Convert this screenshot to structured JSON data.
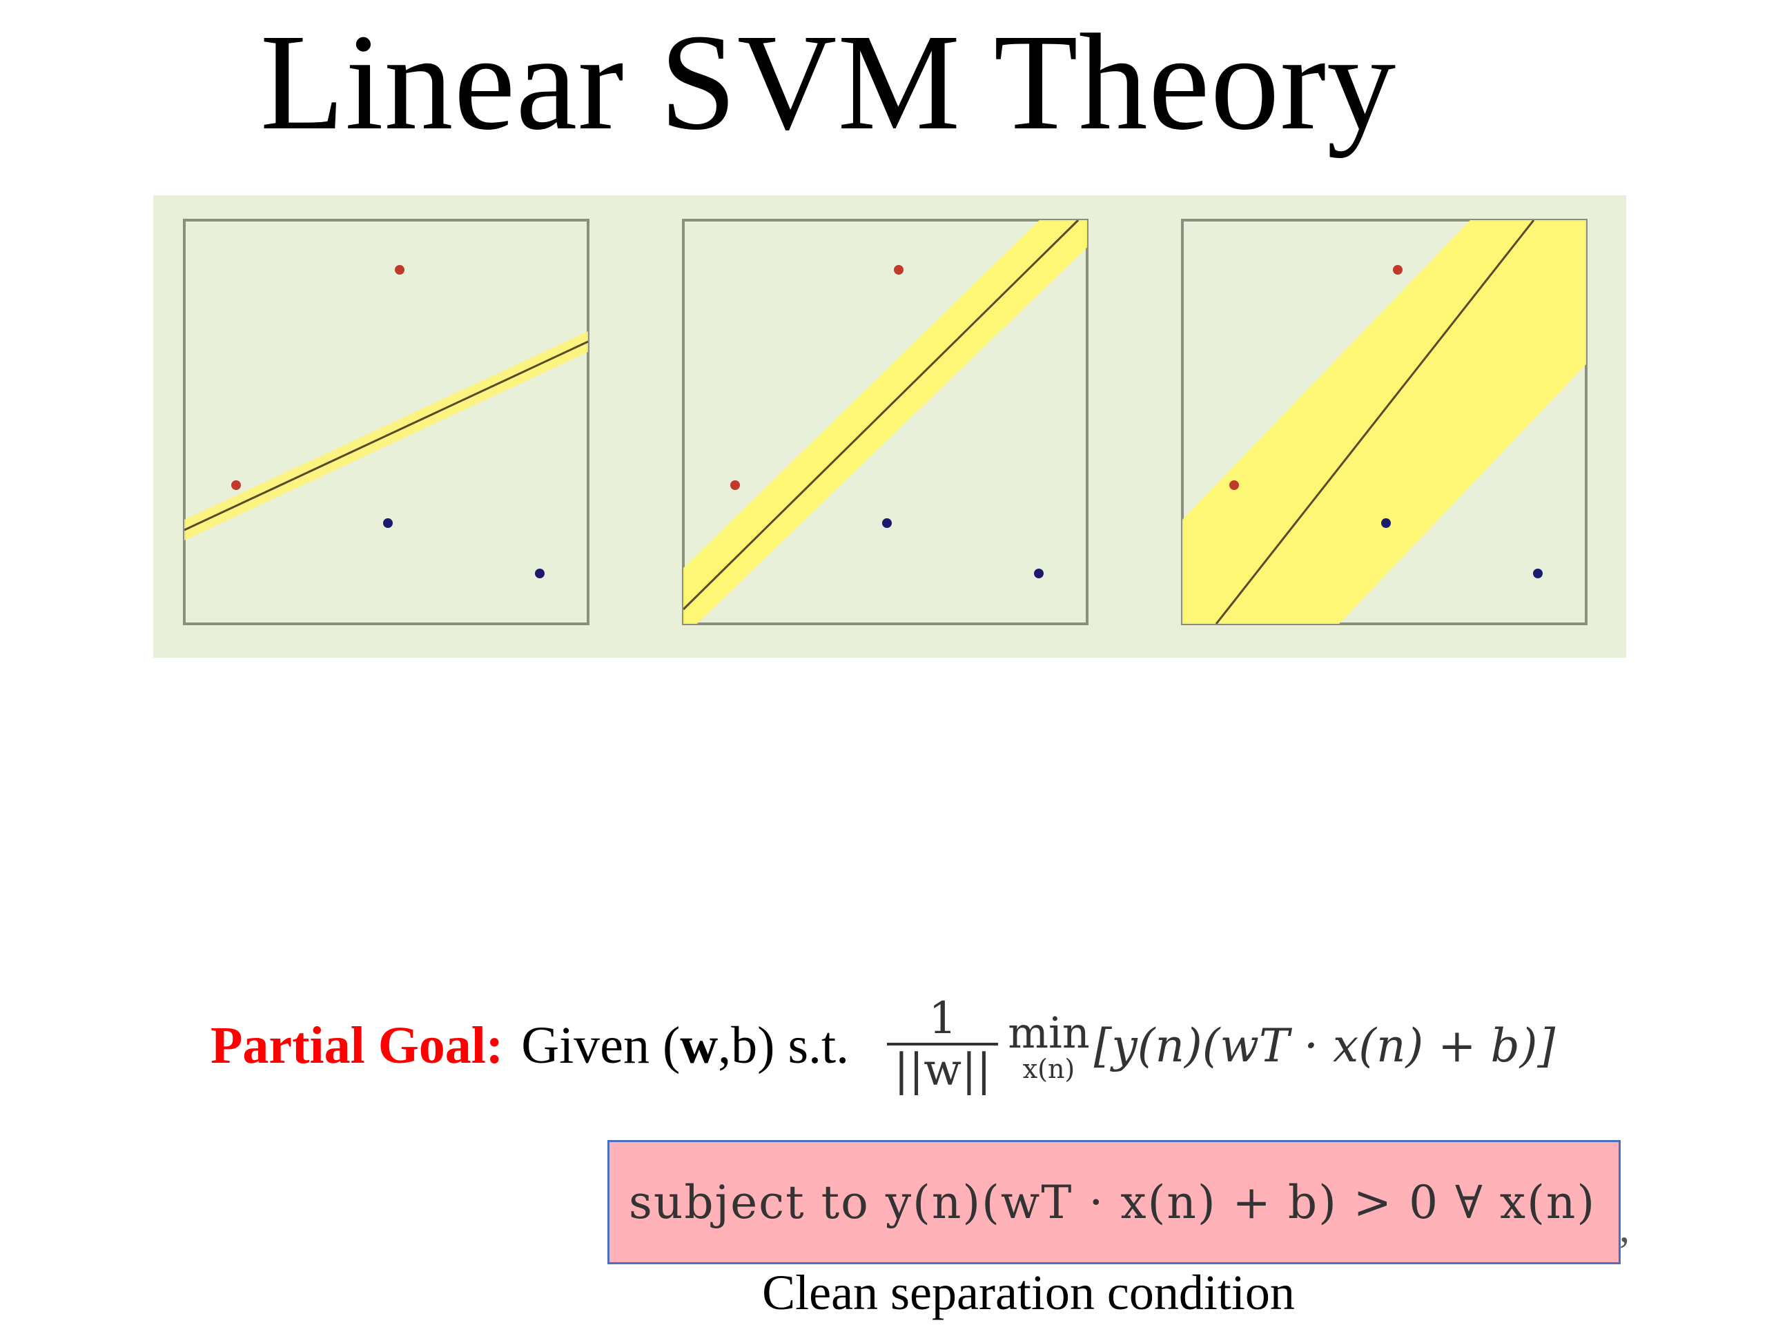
{
  "title": "Linear SVM Theory",
  "figure": {
    "panels": [
      {
        "name": "thin-margin"
      },
      {
        "name": "medium-margin"
      },
      {
        "name": "wide-margin"
      }
    ],
    "colors": {
      "background": "#e9f0d9",
      "panel_border": "#8a8f80",
      "margin_band": "#fff570",
      "boundary_line": "#5a4a2a",
      "positive_point": "#c0392b",
      "negative_point": "#1a1a6e"
    }
  },
  "goal": {
    "label": "Partial Goal:",
    "given": "Given (",
    "w": "w",
    "rest": ",b) s.t.",
    "frac_num": "1",
    "frac_den": "||w||",
    "min_op": "min",
    "min_sub": "x(n)",
    "expression": "[y(n)(wT · x(n) + b)]"
  },
  "constraint": {
    "text": "subject  to  y(n)(wT · x(n) + b) > 0   ∀ x(n)",
    "trailing": ","
  },
  "caption": "Clean separation condition"
}
